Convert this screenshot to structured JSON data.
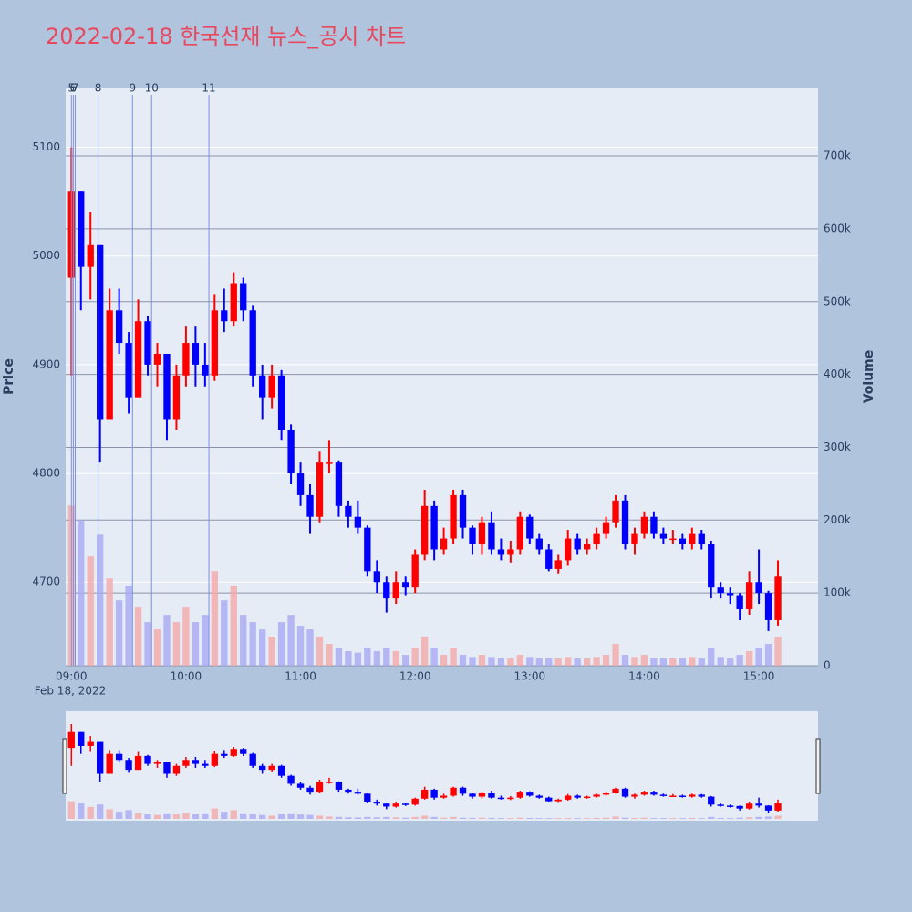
{
  "chart_data": {
    "type": "candlestick",
    "title": "2022-02-18 한국선재 뉴스_공시 차트",
    "y_label": "Price",
    "y2_label": "Volume",
    "date_label": "Feb 18, 2022",
    "increasing_color": "#ff0000",
    "decreasing_color": "#0000ff",
    "volume_up_color": "#f4a9a9",
    "volume_down_color": "#a9a9f4",
    "news_color": "#7f8fe0",
    "xlim": [
      "08:57",
      "15:31"
    ],
    "xticks": [
      "09:00",
      "10:00",
      "11:00",
      "12:00",
      "13:00",
      "14:00",
      "15:00"
    ],
    "ylim": [
      4623,
      5155
    ],
    "yticks": [
      4700,
      4800,
      4900,
      5000,
      5100
    ],
    "y2lim": [
      0,
      794000
    ],
    "y2ticks": [
      0,
      {
        "value": 100000,
        "label": "100k"
      },
      {
        "value": 200000,
        "label": "200k"
      },
      {
        "value": 300000,
        "label": "300k"
      },
      {
        "value": 400000,
        "label": "400k"
      },
      {
        "value": 500000,
        "label": "500k"
      },
      {
        "value": 600000,
        "label": "600k"
      },
      {
        "value": 700000,
        "label": "700k"
      }
    ],
    "news": [
      {
        "x": "09:00",
        "label": "5"
      },
      {
        "x": "09:01",
        "label": "6"
      },
      {
        "x": "09:02",
        "label": "7"
      },
      {
        "x": "09:14",
        "label": "8"
      },
      {
        "x": "09:32",
        "label": "9"
      },
      {
        "x": "09:42",
        "label": "10"
      },
      {
        "x": "10:12",
        "label": "11"
      }
    ],
    "x": [
      "09:00",
      "09:05",
      "09:10",
      "09:15",
      "09:20",
      "09:25",
      "09:30",
      "09:35",
      "09:40",
      "09:45",
      "09:50",
      "09:55",
      "10:00",
      "10:05",
      "10:10",
      "10:15",
      "10:20",
      "10:25",
      "10:30",
      "10:35",
      "10:40",
      "10:45",
      "10:50",
      "10:55",
      "11:00",
      "11:05",
      "11:10",
      "11:15",
      "11:20",
      "11:25",
      "11:30",
      "11:35",
      "11:40",
      "11:45",
      "11:50",
      "11:55",
      "12:00",
      "12:05",
      "12:10",
      "12:15",
      "12:20",
      "12:25",
      "12:30",
      "12:35",
      "12:40",
      "12:45",
      "12:50",
      "12:55",
      "13:00",
      "13:05",
      "13:10",
      "13:15",
      "13:20",
      "13:25",
      "13:30",
      "13:35",
      "13:40",
      "13:45",
      "13:50",
      "13:55",
      "14:00",
      "14:05",
      "14:10",
      "14:15",
      "14:20",
      "14:25",
      "14:30",
      "14:35",
      "14:40",
      "14:45",
      "14:50",
      "14:55",
      "15:00",
      "15:05",
      "15:10"
    ],
    "open": [
      4980,
      5060,
      4990,
      5010,
      4850,
      4950,
      4920,
      4870,
      4940,
      4900,
      4910,
      4850,
      4890,
      4920,
      4900,
      4890,
      4950,
      4940,
      4975,
      4950,
      4890,
      4870,
      4890,
      4840,
      4800,
      4780,
      4760,
      4810,
      4810,
      4770,
      4760,
      4750,
      4710,
      4700,
      4685,
      4700,
      4695,
      4725,
      4770,
      4730,
      4740,
      4780,
      4750,
      4735,
      4755,
      4730,
      4725,
      4730,
      4760,
      4740,
      4730,
      4712,
      4720,
      4740,
      4730,
      4735,
      4745,
      4755,
      4775,
      4735,
      4745,
      4760,
      4745,
      4740,
      4740,
      4735,
      4745,
      4735,
      4695,
      4690,
      4688,
      4675,
      4700,
      4690,
      4665
    ],
    "high": [
      5100,
      5060,
      5040,
      5010,
      4970,
      4970,
      4930,
      4960,
      4945,
      4920,
      4910,
      4900,
      4935,
      4935,
      4920,
      4965,
      4970,
      4985,
      4980,
      4955,
      4900,
      4900,
      4895,
      4845,
      4810,
      4790,
      4820,
      4830,
      4812,
      4775,
      4775,
      4752,
      4720,
      4705,
      4710,
      4705,
      4730,
      4785,
      4775,
      4750,
      4785,
      4785,
      4752,
      4760,
      4765,
      4740,
      4738,
      4765,
      4762,
      4745,
      4735,
      4725,
      4748,
      4745,
      4740,
      4750,
      4760,
      4780,
      4780,
      4750,
      4765,
      4765,
      4750,
      4748,
      4745,
      4750,
      4748,
      4738,
      4700,
      4695,
      4690,
      4710,
      4730,
      4692,
      4720
    ],
    "low": [
      4890,
      4950,
      4960,
      4810,
      4850,
      4910,
      4855,
      4870,
      4890,
      4880,
      4830,
      4840,
      4880,
      4880,
      4880,
      4885,
      4930,
      4935,
      4940,
      4880,
      4850,
      4860,
      4830,
      4790,
      4770,
      4745,
      4755,
      4800,
      4760,
      4750,
      4745,
      4705,
      4690,
      4672,
      4680,
      4688,
      4690,
      4720,
      4720,
      4725,
      4735,
      4740,
      4725,
      4725,
      4725,
      4720,
      4718,
      4725,
      4735,
      4725,
      4710,
      4708,
      4715,
      4725,
      4725,
      4730,
      4740,
      4750,
      4730,
      4725,
      4740,
      4740,
      4735,
      4735,
      4730,
      4730,
      4730,
      4685,
      4685,
      4680,
      4665,
      4670,
      4680,
      4655,
      4660
    ],
    "close": [
      5060,
      4990,
      5010,
      4850,
      4950,
      4920,
      4870,
      4940,
      4900,
      4910,
      4850,
      4890,
      4920,
      4900,
      4890,
      4950,
      4940,
      4975,
      4950,
      4890,
      4870,
      4890,
      4840,
      4800,
      4780,
      4760,
      4810,
      4810,
      4770,
      4760,
      4750,
      4710,
      4700,
      4685,
      4700,
      4695,
      4725,
      4770,
      4730,
      4740,
      4780,
      4750,
      4735,
      4755,
      4730,
      4725,
      4730,
      4760,
      4740,
      4730,
      4712,
      4720,
      4740,
      4730,
      4735,
      4745,
      4755,
      4775,
      4735,
      4745,
      4760,
      4745,
      4740,
      4740,
      4735,
      4745,
      4735,
      4695,
      4690,
      4688,
      4675,
      4700,
      4690,
      4665,
      4705
    ],
    "volume": [
      220000,
      200000,
      150000,
      180000,
      120000,
      90000,
      110000,
      80000,
      60000,
      50000,
      70000,
      60000,
      80000,
      60000,
      70000,
      130000,
      90000,
      110000,
      70000,
      60000,
      50000,
      40000,
      60000,
      70000,
      55000,
      50000,
      40000,
      30000,
      25000,
      20000,
      18000,
      25000,
      20000,
      25000,
      20000,
      15000,
      25000,
      40000,
      25000,
      15000,
      25000,
      15000,
      12000,
      15000,
      12000,
      10000,
      10000,
      15000,
      12000,
      10000,
      10000,
      10000,
      12000,
      10000,
      10000,
      12000,
      15000,
      30000,
      15000,
      12000,
      15000,
      10000,
      10000,
      10000,
      10000,
      12000,
      10000,
      25000,
      12000,
      10000,
      15000,
      20000,
      25000,
      30000,
      40000
    ]
  }
}
